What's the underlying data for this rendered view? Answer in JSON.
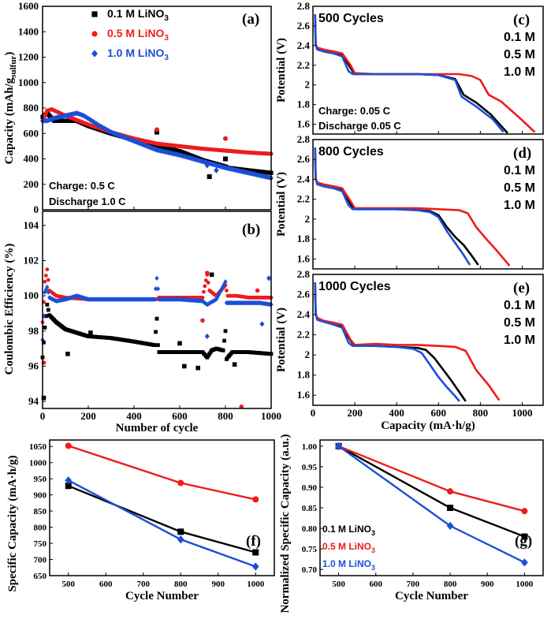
{
  "colors": {
    "s01": "#000000",
    "s05": "#ee1c1c",
    "s10": "#1c4fd8"
  },
  "chart_data": [
    {
      "id": "a",
      "panel_label": "(a)",
      "type": "scatter",
      "ylabel_main": "Capacity (mAh/g",
      "ylabel_sub": "sulfur",
      "ylabel_end": ")",
      "xlim": [
        0,
        1000
      ],
      "ylim": [
        0,
        1600
      ],
      "xticks": [
        0,
        200,
        400,
        600,
        800,
        1000
      ],
      "yticks": [
        0,
        200,
        400,
        600,
        800,
        1000,
        1200,
        1400,
        1600
      ],
      "legend": [
        {
          "pre": "0.1 M LiNO",
          "sub": "3"
        },
        {
          "pre": "0.5 M LiNO",
          "sub": "3"
        },
        {
          "pre": "1.0 M LiNO",
          "sub": "3"
        }
      ],
      "notes": [
        "Charge: 0.5 C",
        "Discharge 1.0 C"
      ],
      "series": [
        {
          "name": "0.1 M LiNO3",
          "x": [
            0,
            20,
            50,
            100,
            150,
            200,
            250,
            300,
            400,
            500,
            510,
            600,
            700,
            720,
            800,
            810,
            900,
            1000
          ],
          "y": [
            730,
            760,
            700,
            700,
            700,
            660,
            630,
            600,
            550,
            510,
            500,
            460,
            390,
            380,
            340,
            330,
            310,
            290
          ]
        },
        {
          "name": "0.5 M LiNO3",
          "x": [
            0,
            20,
            40,
            100,
            200,
            300,
            400,
            500,
            600,
            700,
            800,
            900,
            1000
          ],
          "y": [
            700,
            780,
            790,
            740,
            670,
            610,
            560,
            520,
            500,
            480,
            465,
            450,
            440
          ]
        },
        {
          "name": "1.0 M LiNO3",
          "x": [
            0,
            20,
            50,
            100,
            150,
            180,
            250,
            300,
            400,
            500,
            600,
            700,
            800,
            900,
            1000
          ],
          "y": [
            700,
            700,
            720,
            740,
            760,
            740,
            660,
            610,
            540,
            470,
            430,
            380,
            330,
            290,
            250
          ]
        }
      ],
      "outliers": [
        {
          "s": 0,
          "x": 500,
          "y": 610
        },
        {
          "s": 0,
          "x": 730,
          "y": 260
        },
        {
          "s": 0,
          "x": 800,
          "y": 400
        },
        {
          "s": 1,
          "x": 500,
          "y": 630
        },
        {
          "s": 1,
          "x": 800,
          "y": 560
        },
        {
          "s": 2,
          "x": 720,
          "y": 350
        },
        {
          "s": 2,
          "x": 760,
          "y": 310
        }
      ]
    },
    {
      "id": "b",
      "panel_label": "(b)",
      "type": "scatter",
      "xlabel": "Number of cycle",
      "ylabel": "Coulombic Efficiency (%)",
      "xlim": [
        0,
        1000
      ],
      "ylim": [
        93.6,
        104.8
      ],
      "xticks": [
        0,
        200,
        400,
        600,
        800,
        1000
      ],
      "yticks": [
        94,
        96,
        98,
        100,
        102,
        104
      ],
      "series": [
        {
          "name": "0.1 M LiNO3",
          "x": [
            0,
            10,
            20,
            30,
            60,
            100,
            150,
            200,
            300,
            400,
            490,
            500,
            505,
            510,
            520,
            600,
            700,
            720,
            740,
            760,
            790,
            800,
            805,
            810,
            830,
            900,
            1000
          ],
          "y": [
            96.5,
            98.2,
            99.5,
            98.9,
            98.5,
            98.1,
            97.9,
            97.7,
            97.6,
            97.4,
            97.2,
            98.7,
            97.2,
            96.8,
            96.8,
            96.8,
            96.8,
            96.5,
            96.9,
            97.0,
            96.9,
            98.0,
            96.4,
            96.5,
            96.8,
            96.8,
            96.7
          ]
        },
        {
          "name": "0.5 M LiNO3",
          "x": [
            0,
            10,
            20,
            30,
            60,
            100,
            200,
            300,
            400,
            500,
            510,
            600,
            700,
            720,
            730,
            760,
            800,
            810,
            850,
            900,
            1000
          ],
          "y": [
            98.5,
            100.8,
            101.5,
            100.3,
            100.0,
            99.9,
            99.8,
            99.8,
            99.8,
            99.8,
            99.9,
            99.9,
            99.9,
            101.2,
            100.3,
            100.0,
            100.6,
            100.0,
            100.0,
            99.9,
            99.9
          ]
        },
        {
          "name": "1.0 M LiNO3",
          "x": [
            0,
            10,
            20,
            30,
            60,
            100,
            150,
            200,
            300,
            400,
            490,
            500,
            510,
            600,
            700,
            720,
            760,
            800,
            805,
            850,
            900,
            950,
            1000
          ],
          "y": [
            97.5,
            100.2,
            100.5,
            99.9,
            99.7,
            99.8,
            100.0,
            99.8,
            99.8,
            99.8,
            99.8,
            101.0,
            99.8,
            99.8,
            99.7,
            99.5,
            99.8,
            100.8,
            99.6,
            99.6,
            99.6,
            99.6,
            99.5
          ]
        }
      ],
      "outliers": [
        {
          "s": 0,
          "x": 5,
          "y": 94.2
        },
        {
          "s": 0,
          "x": 110,
          "y": 96.7
        },
        {
          "s": 0,
          "x": 620,
          "y": 96.0
        },
        {
          "s": 0,
          "x": 680,
          "y": 95.9
        },
        {
          "s": 0,
          "x": 740,
          "y": 101.2
        },
        {
          "s": 0,
          "x": 840,
          "y": 96.1
        },
        {
          "s": 0,
          "x": 210,
          "y": 97.9
        },
        {
          "s": 0,
          "x": 600,
          "y": 97.3
        },
        {
          "s": 1,
          "x": 5,
          "y": 96.2
        },
        {
          "s": 1,
          "x": 700,
          "y": 98.6
        },
        {
          "s": 1,
          "x": 720,
          "y": 101.3
        },
        {
          "s": 1,
          "x": 870,
          "y": 93.7
        },
        {
          "s": 1,
          "x": 940,
          "y": 100.3
        },
        {
          "s": 2,
          "x": 720,
          "y": 97.7
        },
        {
          "s": 2,
          "x": 960,
          "y": 98.4
        },
        {
          "s": 2,
          "x": 990,
          "y": 101.0
        }
      ]
    },
    {
      "id": "c",
      "panel_label": "(c)",
      "type": "line",
      "title": "500 Cycles",
      "ylabel": "Potential (V)",
      "xlim": [
        0,
        1100
      ],
      "ylim": [
        1.5,
        2.8
      ],
      "yticks": [
        1.6,
        1.8,
        2.0,
        2.2,
        2.4,
        2.6,
        2.8
      ],
      "legend": [
        "0.1 M",
        "0.5 M",
        "1.0 M"
      ],
      "notes": [
        "Charge: 0.05 C",
        "Discharge 0.05 C"
      ],
      "series": [
        {
          "name": "0.1 M",
          "x": [
            10,
            13,
            20,
            50,
            100,
            140,
            180,
            200,
            300,
            400,
            500,
            600,
            680,
            720,
            780,
            850,
            930
          ],
          "y": [
            2.72,
            2.41,
            2.37,
            2.35,
            2.33,
            2.31,
            2.17,
            2.11,
            2.11,
            2.11,
            2.11,
            2.1,
            2.06,
            1.9,
            1.82,
            1.7,
            1.51
          ]
        },
        {
          "name": "0.5 M",
          "x": [
            10,
            13,
            20,
            50,
            100,
            140,
            180,
            200,
            300,
            400,
            500,
            600,
            700,
            760,
            800,
            840,
            900,
            980,
            1060
          ],
          "y": [
            2.72,
            2.41,
            2.38,
            2.36,
            2.34,
            2.32,
            2.2,
            2.12,
            2.11,
            2.11,
            2.11,
            2.11,
            2.11,
            2.09,
            2.05,
            1.9,
            1.83,
            1.68,
            1.52
          ]
        },
        {
          "name": "1.0 M",
          "x": [
            10,
            13,
            20,
            50,
            100,
            140,
            170,
            190,
            300,
            400,
            500,
            600,
            680,
            710,
            780,
            860,
            910
          ],
          "y": [
            2.72,
            2.41,
            2.36,
            2.34,
            2.32,
            2.29,
            2.14,
            2.11,
            2.11,
            2.11,
            2.11,
            2.1,
            2.05,
            1.88,
            1.78,
            1.65,
            1.52
          ]
        }
      ]
    },
    {
      "id": "d",
      "panel_label": "(d)",
      "type": "line",
      "title": "800 Cycles",
      "ylabel": "Potential (V)",
      "xlim": [
        0,
        1100
      ],
      "ylim": [
        1.5,
        2.8
      ],
      "yticks": [
        1.6,
        1.8,
        2.0,
        2.2,
        2.4,
        2.6,
        2.8
      ],
      "legend": [
        "0.1 M",
        "0.5 M",
        "1.0 M"
      ],
      "series": [
        {
          "name": "0.1 M",
          "x": [
            10,
            13,
            20,
            50,
            100,
            140,
            180,
            200,
            300,
            400,
            500,
            560,
            600,
            640,
            680,
            720,
            760,
            790
          ],
          "y": [
            2.72,
            2.41,
            2.36,
            2.34,
            2.32,
            2.3,
            2.15,
            2.1,
            2.1,
            2.1,
            2.09,
            2.08,
            2.04,
            1.92,
            1.82,
            1.74,
            1.63,
            1.54
          ]
        },
        {
          "name": "0.5 M",
          "x": [
            10,
            13,
            20,
            50,
            100,
            140,
            180,
            200,
            300,
            400,
            500,
            600,
            700,
            740,
            780,
            820,
            880,
            940
          ],
          "y": [
            2.72,
            2.41,
            2.37,
            2.35,
            2.33,
            2.31,
            2.18,
            2.11,
            2.11,
            2.11,
            2.11,
            2.1,
            2.09,
            2.06,
            1.92,
            1.82,
            1.68,
            1.53
          ]
        },
        {
          "name": "1.0 M",
          "x": [
            10,
            13,
            20,
            50,
            100,
            140,
            170,
            190,
            300,
            400,
            500,
            560,
            600,
            640,
            680,
            720,
            750
          ],
          "y": [
            2.72,
            2.41,
            2.35,
            2.33,
            2.31,
            2.28,
            2.14,
            2.1,
            2.1,
            2.1,
            2.09,
            2.07,
            2.02,
            1.88,
            1.76,
            1.64,
            1.54
          ]
        }
      ]
    },
    {
      "id": "e",
      "panel_label": "(e)",
      "type": "line",
      "title": "1000 Cycles",
      "xlabel": "Capacity (mA·h/g)",
      "ylabel": "Potential (V)",
      "xlim": [
        0,
        1100
      ],
      "ylim": [
        1.5,
        2.8
      ],
      "xticks": [
        0,
        200,
        400,
        600,
        800,
        1000
      ],
      "yticks": [
        1.6,
        1.8,
        2.0,
        2.2,
        2.4,
        2.6,
        2.8
      ],
      "legend": [
        "0.1 M",
        "0.5 M",
        "1.0 M"
      ],
      "series": [
        {
          "name": "0.1 M",
          "x": [
            10,
            13,
            20,
            50,
            100,
            140,
            180,
            200,
            300,
            400,
            500,
            540,
            580,
            620,
            660,
            700,
            730
          ],
          "y": [
            2.72,
            2.41,
            2.36,
            2.34,
            2.31,
            2.28,
            2.14,
            2.09,
            2.09,
            2.08,
            2.07,
            2.05,
            1.97,
            1.86,
            1.75,
            1.63,
            1.54
          ]
        },
        {
          "name": "0.5 M",
          "x": [
            10,
            13,
            20,
            50,
            100,
            140,
            180,
            200,
            300,
            400,
            500,
            600,
            680,
            730,
            780,
            840,
            890
          ],
          "y": [
            2.72,
            2.41,
            2.37,
            2.34,
            2.32,
            2.3,
            2.15,
            2.1,
            2.11,
            2.1,
            2.1,
            2.09,
            2.08,
            2.04,
            1.85,
            1.7,
            1.55
          ]
        },
        {
          "name": "1.0 M",
          "x": [
            10,
            13,
            20,
            50,
            100,
            140,
            170,
            190,
            300,
            400,
            480,
            520,
            560,
            600,
            640,
            680,
            700
          ],
          "y": [
            2.72,
            2.41,
            2.35,
            2.33,
            2.3,
            2.27,
            2.12,
            2.09,
            2.09,
            2.08,
            2.06,
            2.02,
            1.9,
            1.78,
            1.68,
            1.59,
            1.54
          ]
        }
      ]
    },
    {
      "id": "f",
      "panel_label": "(f)",
      "type": "line",
      "xlabel": "Cycle Number",
      "ylabel": "Specific Capacity (mA·h/g)",
      "xlim": [
        450,
        1050
      ],
      "ylim": [
        650,
        1070
      ],
      "xticks": [
        500,
        600,
        700,
        800,
        900,
        1000
      ],
      "yticks": [
        650,
        700,
        750,
        800,
        850,
        900,
        950,
        1000,
        1050
      ],
      "series": [
        {
          "name": "0.1 M LiNO3",
          "x": [
            500,
            800,
            1000
          ],
          "y": [
            928,
            786,
            722
          ]
        },
        {
          "name": "0.5 M LiNO3",
          "x": [
            500,
            800,
            1000
          ],
          "y": [
            1052,
            937,
            886
          ]
        },
        {
          "name": "1.0 M LiNO3",
          "x": [
            500,
            800,
            1000
          ],
          "y": [
            945,
            762,
            678
          ]
        }
      ]
    },
    {
      "id": "g",
      "panel_label": "(g)",
      "type": "line",
      "xlabel": "Cycle Number",
      "ylabel": "Normalized Specific Capacity (a.u.)",
      "xlim": [
        450,
        1050
      ],
      "ylim": [
        0.685,
        1.015
      ],
      "xticks": [
        500,
        600,
        700,
        800,
        900,
        1000
      ],
      "yticks": [
        "0.70",
        "0.75",
        "0.80",
        "0.85",
        "0.90",
        "0.95",
        "1.00"
      ],
      "legend": [
        {
          "pre": "0.1 M LiNO",
          "sub": "3"
        },
        {
          "pre": "0.5 M LiNO",
          "sub": "3"
        },
        {
          "pre": "1.0 M LiNO",
          "sub": "3"
        }
      ],
      "series": [
        {
          "name": "0.1 M LiNO3",
          "x": [
            500,
            800,
            1000
          ],
          "y": [
            1.0,
            0.85,
            0.78
          ]
        },
        {
          "name": "0.5 M LiNO3",
          "x": [
            500,
            800,
            1000
          ],
          "y": [
            1.0,
            0.89,
            0.842
          ]
        },
        {
          "name": "1.0 M LiNO3",
          "x": [
            500,
            800,
            1000
          ],
          "y": [
            1.0,
            0.806,
            0.717
          ]
        }
      ]
    }
  ]
}
